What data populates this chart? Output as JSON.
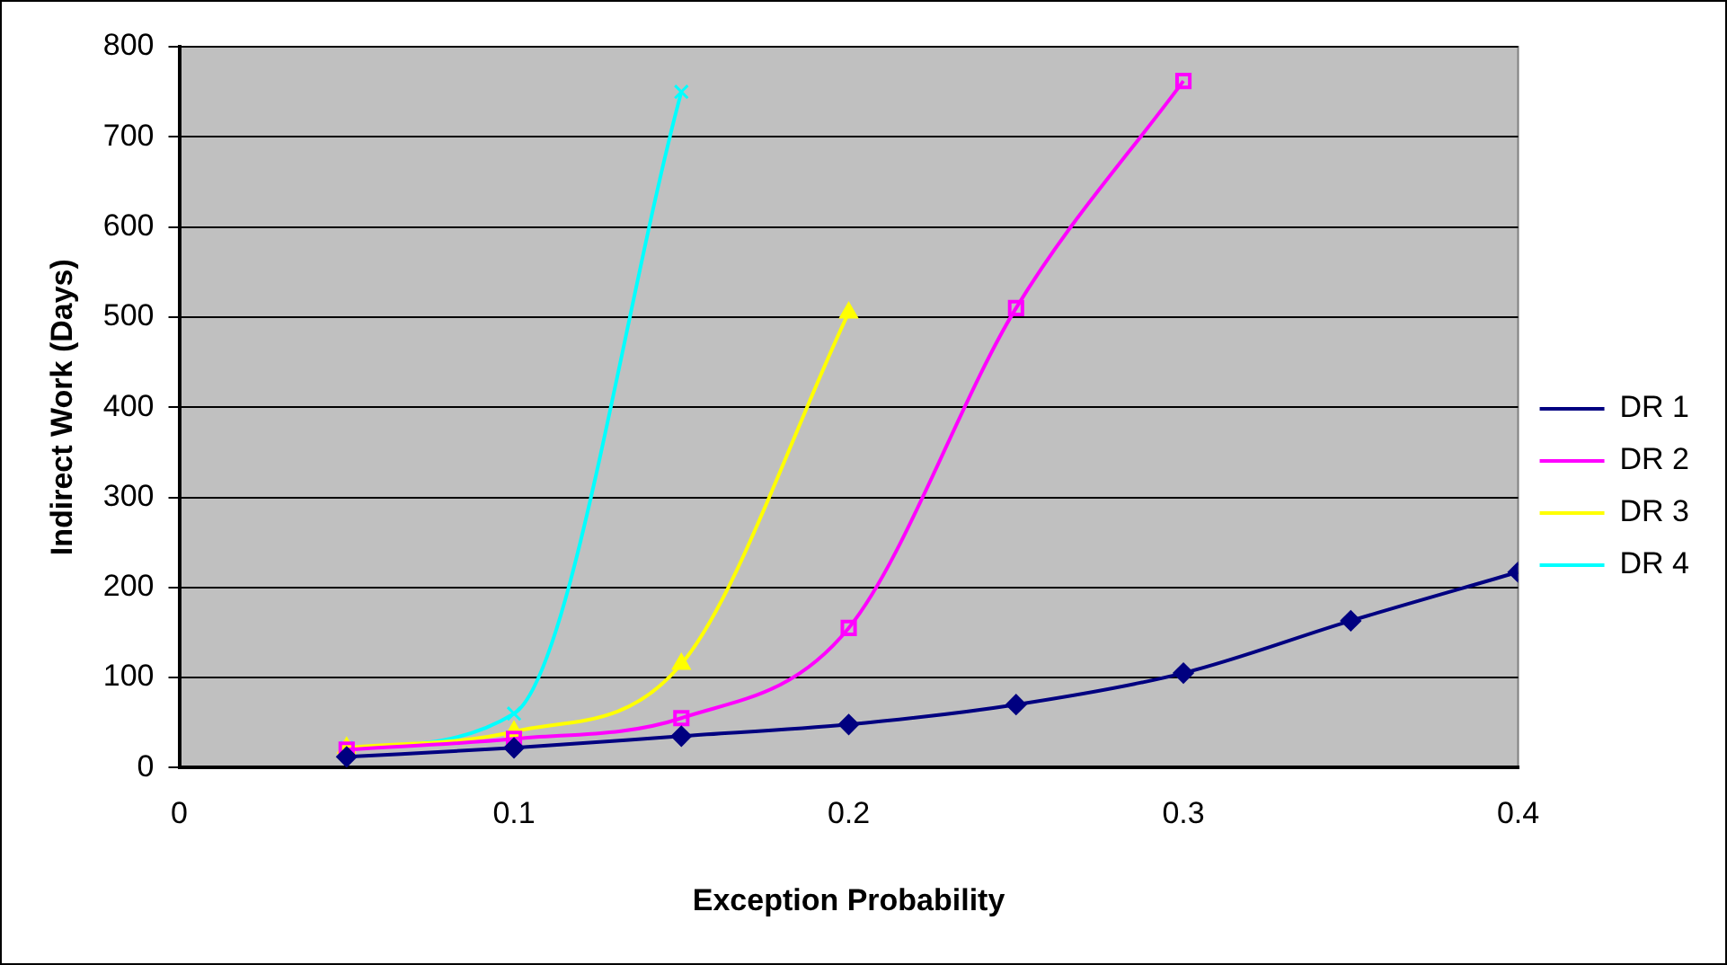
{
  "chart_data": {
    "type": "line",
    "xlabel": "Exception Probability",
    "ylabel": "Indirect Work (Days)",
    "xlim": [
      0,
      0.4
    ],
    "xticks": [
      0,
      0.1,
      0.2,
      0.3,
      0.4
    ],
    "ylim": [
      0,
      800
    ],
    "yticks": [
      0,
      100,
      200,
      300,
      400,
      500,
      600,
      700,
      800
    ],
    "grid": "y",
    "legend": "right",
    "line_style": "solid",
    "series": [
      {
        "name": "DR 1",
        "color": "#000080",
        "marker": "diamond",
        "x": [
          0.05,
          0.1,
          0.15,
          0.2,
          0.25,
          0.3,
          0.35,
          0.4
        ],
        "values": [
          12,
          22,
          35,
          48,
          70,
          105,
          163,
          217
        ]
      },
      {
        "name": "DR 2",
        "color": "#ff00ff",
        "marker": "square",
        "x": [
          0.05,
          0.1,
          0.15,
          0.2,
          0.25,
          0.3
        ],
        "values": [
          20,
          32,
          55,
          155,
          510,
          762
        ]
      },
      {
        "name": "DR 3",
        "color": "#ffff00",
        "marker": "triangle",
        "x": [
          0.05,
          0.1,
          0.15,
          0.2
        ],
        "values": [
          22,
          40,
          115,
          505
        ]
      },
      {
        "name": "DR 4",
        "color": "#00ffff",
        "marker": "cross",
        "x": [
          0.05,
          0.1,
          0.15
        ],
        "values": [
          22,
          60,
          750
        ]
      }
    ]
  }
}
